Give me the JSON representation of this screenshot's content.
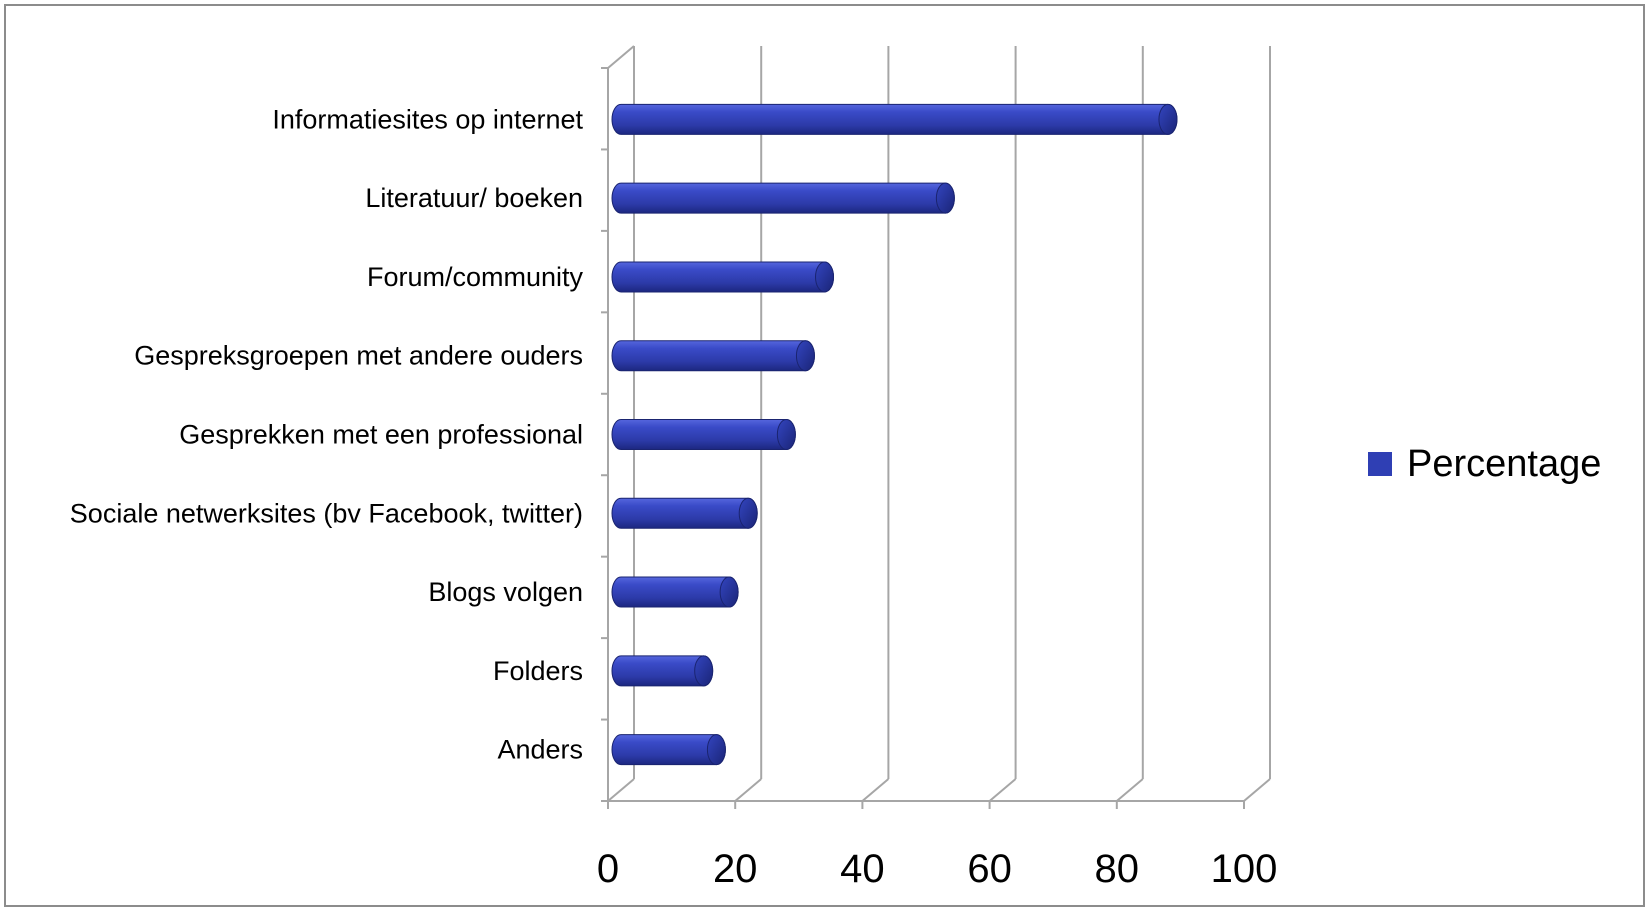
{
  "chart_data": {
    "type": "bar",
    "orientation": "horizontal",
    "style": "3d-cylinder",
    "categories": [
      "Informatiesites op internet",
      "Literatuur/ boeken",
      "Forum/community",
      "Gespreksgroepen met andere ouders",
      "Gesprekken met een professional",
      "Sociale netwerksites (bv Facebook, twitter)",
      "Blogs volgen",
      "Folders",
      "Anders"
    ],
    "series": [
      {
        "name": "Percentage",
        "color": "#2f3fb4",
        "values": [
          86,
          51,
          32,
          29,
          26,
          20,
          17,
          13,
          15
        ]
      }
    ],
    "title": "",
    "xlabel": "",
    "ylabel": "",
    "xlim": [
      0,
      100
    ],
    "xticks": [
      "0",
      "20",
      "40",
      "60",
      "80",
      "100"
    ],
    "grid": true,
    "legend_position": "right"
  }
}
